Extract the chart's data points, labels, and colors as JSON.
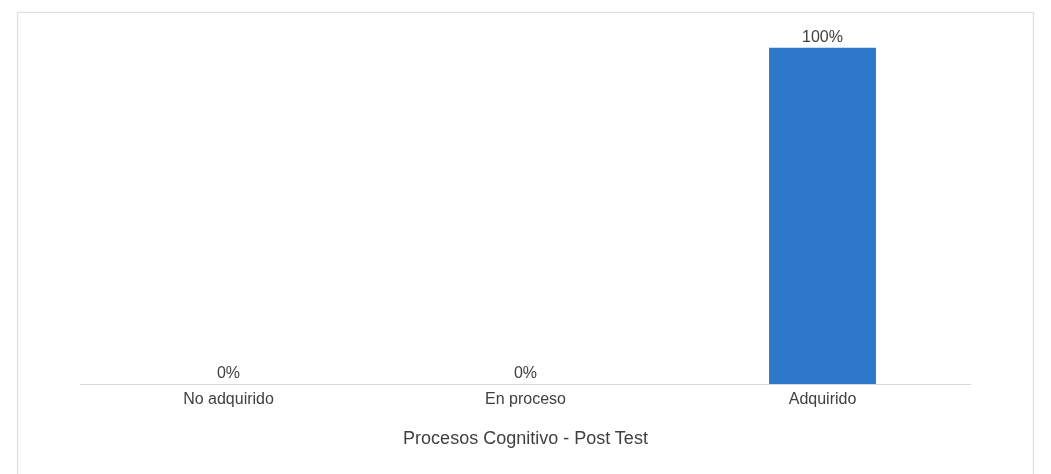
{
  "chart_data": {
    "type": "bar",
    "xlabel": "Procesos Cognitivo - Post Test",
    "categories": [
      "No adquirido",
      "En proceso",
      "Adquirido"
    ],
    "values": [
      0,
      0,
      100
    ],
    "value_labels": [
      "0%",
      "0%",
      "100%"
    ],
    "color": "#2e78cc"
  }
}
